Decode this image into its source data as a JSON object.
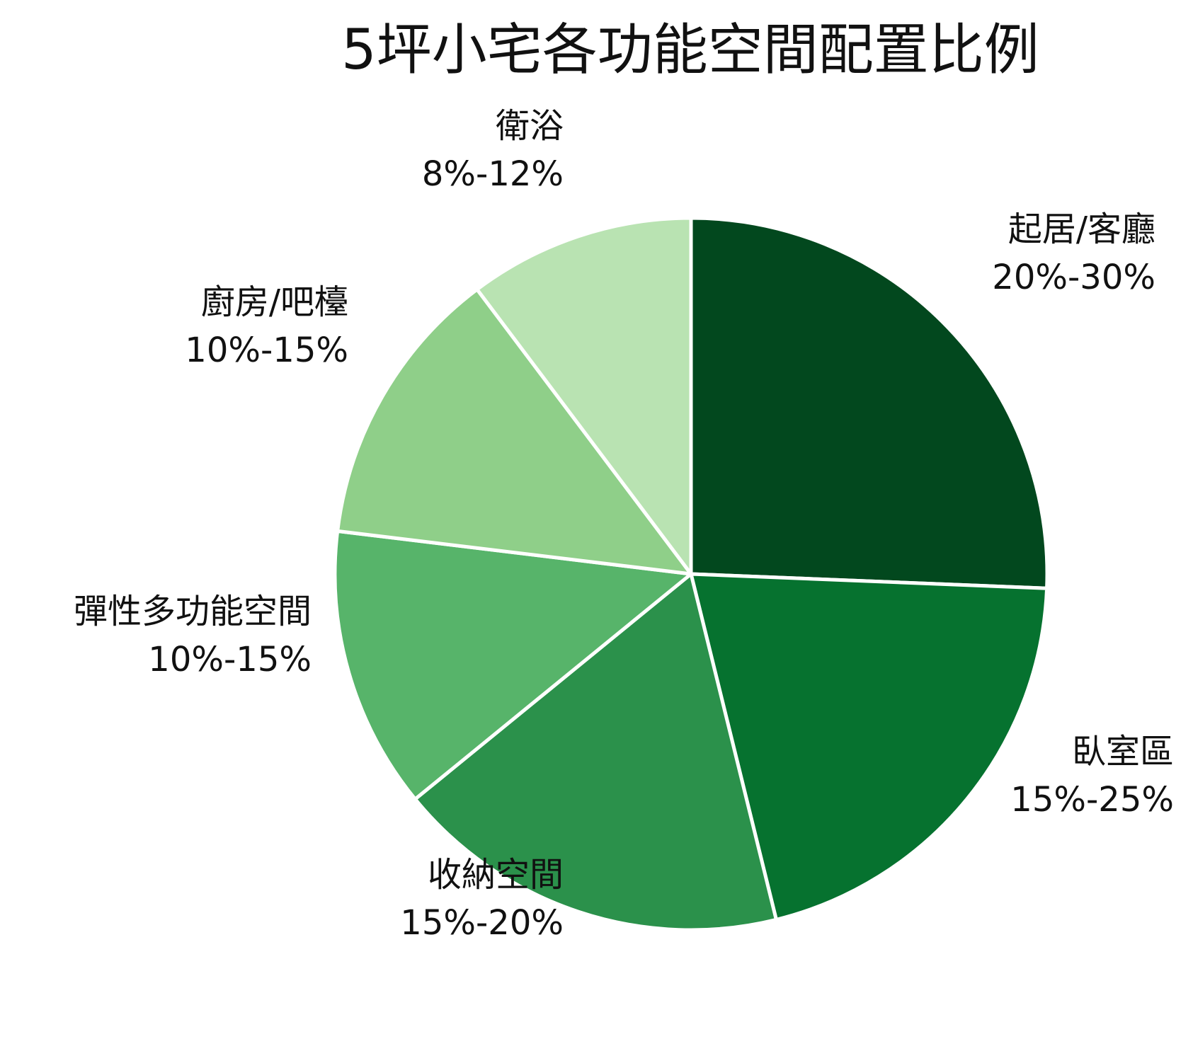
{
  "chart_data": {
    "type": "pie",
    "title": "5坪小宅各功能空間配置比例",
    "start_angle_deg": 0,
    "direction": "clockwise",
    "slices": [
      {
        "label": "起居/客廳",
        "range": "20%-30%",
        "value": 25,
        "color": "#02481e"
      },
      {
        "label": "臥室區",
        "range": "15%-25%",
        "value": 20,
        "color": "#06722f"
      },
      {
        "label": "收納空間",
        "range": "15%-20%",
        "value": 17.5,
        "color": "#2b914b"
      },
      {
        "label": "彈性多功能空間",
        "range": "10%-15%",
        "value": 12.5,
        "color": "#57b46a"
      },
      {
        "label": "廚房/吧檯",
        "range": "10%-15%",
        "value": 12.5,
        "color": "#8fcf89"
      },
      {
        "label": "衛浴",
        "range": "8%-12%",
        "value": 10,
        "color": "#b9e3b2"
      }
    ]
  }
}
